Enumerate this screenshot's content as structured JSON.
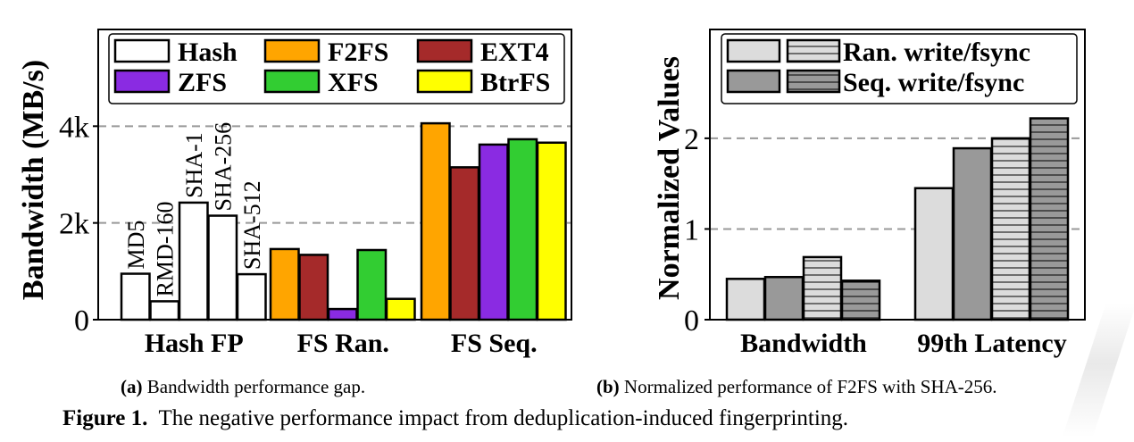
{
  "chart_data": [
    {
      "type": "bar",
      "ylabel": "Bandwidth (MB/s)",
      "yticks": [
        "0",
        "2k",
        "4k"
      ],
      "ytick_values": [
        0,
        2000,
        4000
      ],
      "ylim": [
        0,
        6000
      ],
      "grid": "horizontal dashed",
      "legend_position": "top",
      "legend": [
        {
          "name": "Hash",
          "color": "#ffffff"
        },
        {
          "name": "F2FS",
          "color": "#ffa500"
        },
        {
          "name": "EXT4",
          "color": "#a52a2a"
        },
        {
          "name": "ZFS",
          "color": "#8a2be2"
        },
        {
          "name": "XFS",
          "color": "#32cd32"
        },
        {
          "name": "BtrFS",
          "color": "#ffff00"
        }
      ],
      "groups": [
        {
          "category": "Hash FP",
          "bars": [
            {
              "label": "MD5",
              "series": "Hash",
              "value": 950
            },
            {
              "label": "RMD-160",
              "series": "Hash",
              "value": 380
            },
            {
              "label": "SHA-1",
              "series": "Hash",
              "value": 2420
            },
            {
              "label": "SHA-256",
              "series": "Hash",
              "value": 2150
            },
            {
              "label": "SHA-512",
              "series": "Hash",
              "value": 940
            }
          ]
        },
        {
          "category": "FS Ran.",
          "bars": [
            {
              "series": "F2FS",
              "value": 1460
            },
            {
              "series": "EXT4",
              "value": 1340
            },
            {
              "series": "ZFS",
              "value": 220
            },
            {
              "series": "XFS",
              "value": 1440
            },
            {
              "series": "BtrFS",
              "value": 430
            }
          ]
        },
        {
          "category": "FS Seq.",
          "bars": [
            {
              "series": "F2FS",
              "value": 4060
            },
            {
              "series": "EXT4",
              "value": 3150
            },
            {
              "series": "ZFS",
              "value": 3620
            },
            {
              "series": "XFS",
              "value": 3730
            },
            {
              "series": "BtrFS",
              "value": 3660
            }
          ]
        }
      ],
      "caption_prefix": "(a)",
      "caption": "Bandwidth performance gap."
    },
    {
      "type": "bar",
      "ylabel": "Normalized Values",
      "yticks": [
        "0",
        "1",
        "2"
      ],
      "ytick_values": [
        0,
        1,
        2
      ],
      "ylim": [
        0,
        3.2
      ],
      "grid": "horizontal dashed",
      "legend_position": "top",
      "legend": [
        {
          "name": "Ran. write/fsync",
          "colors": [
            "#dcdcdc"
          ],
          "hatched_color": "#dcdcdc"
        },
        {
          "name": "Seq.  write/fsync",
          "colors": [
            "#999999"
          ],
          "hatched_color": "#999999"
        }
      ],
      "categories": [
        "Bandwidth",
        "99th Latency"
      ],
      "series": [
        {
          "name": "Ran. write",
          "color": "#dcdcdc",
          "hatched": false,
          "values": [
            0.45,
            1.45
          ]
        },
        {
          "name": "Seq. write",
          "color": "#999999",
          "hatched": false,
          "values": [
            0.47,
            1.89
          ]
        },
        {
          "name": "Ran. fsync",
          "color": "#dcdcdc",
          "hatched": true,
          "values": [
            0.69,
            2.0
          ]
        },
        {
          "name": "Seq. fsync",
          "color": "#999999",
          "hatched": true,
          "values": [
            0.43,
            2.22
          ]
        }
      ],
      "caption_prefix": "(b)",
      "caption": "Normalized performance of F2FS with SHA-256."
    }
  ],
  "figure_caption": {
    "prefix": "Figure 1.",
    "text": "The negative performance impact from deduplication-induced fingerprinting."
  }
}
